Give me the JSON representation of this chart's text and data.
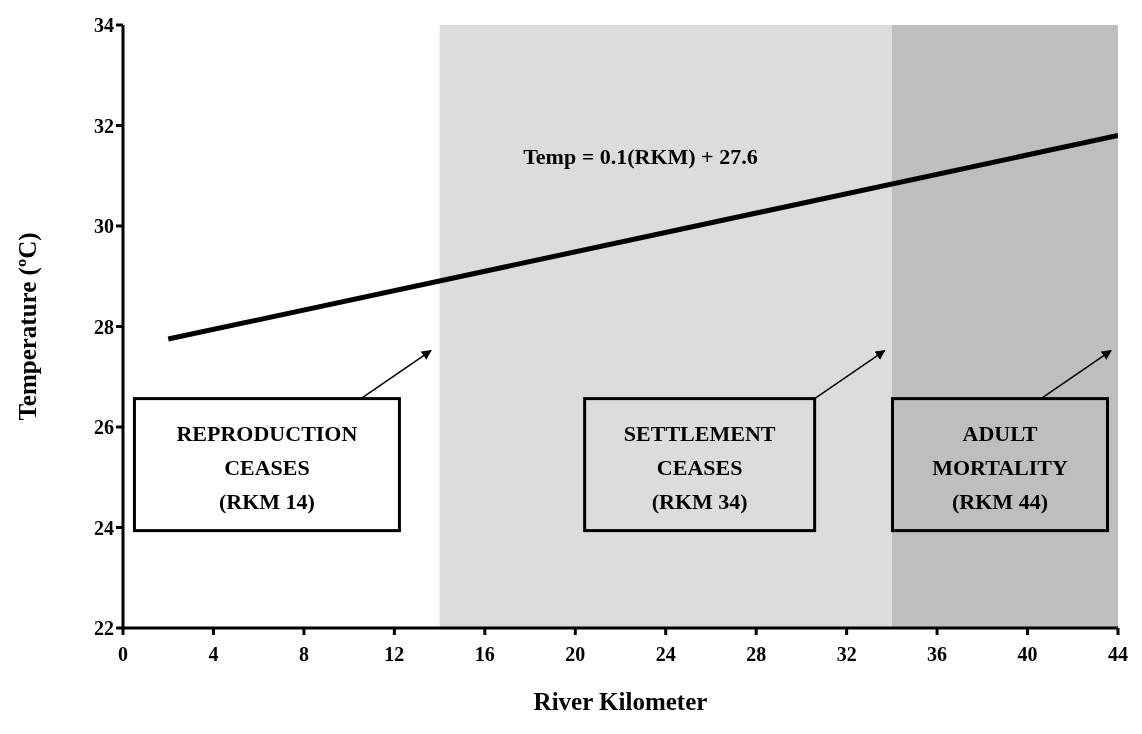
{
  "chart_data": {
    "type": "line",
    "xlabel": "River Kilometer",
    "ylabel": "Temperature (ºC)",
    "x": [
      2,
      44
    ],
    "series": [
      {
        "color": "#000000",
        "values": [
          27.75,
          31.8
        ]
      }
    ],
    "xlim": [
      0,
      44
    ],
    "xticks": [
      0,
      4,
      8,
      12,
      16,
      20,
      24,
      28,
      32,
      36,
      40,
      44
    ],
    "ylim": [
      22,
      34
    ],
    "yticks": [
      22,
      24,
      26,
      28,
      30,
      32,
      34
    ],
    "grid": false,
    "legend": false,
    "marker": "none",
    "line_style": "solid",
    "bands": [
      {
        "axis": "x",
        "from": 14,
        "to": 34,
        "color": "#dcdcdc"
      },
      {
        "axis": "x",
        "from": 34,
        "to": 44,
        "color": "#bebebe"
      }
    ],
    "annotations": [
      "Temp = 0.1(RKM) + 27.6",
      "REPRODUCTION\nCEASES\n(RKM 14)",
      "SETTLEMENT\nCEASES\n(RKM 34)",
      "ADULT\nMORTALITY\n(RKM 44)"
    ]
  }
}
